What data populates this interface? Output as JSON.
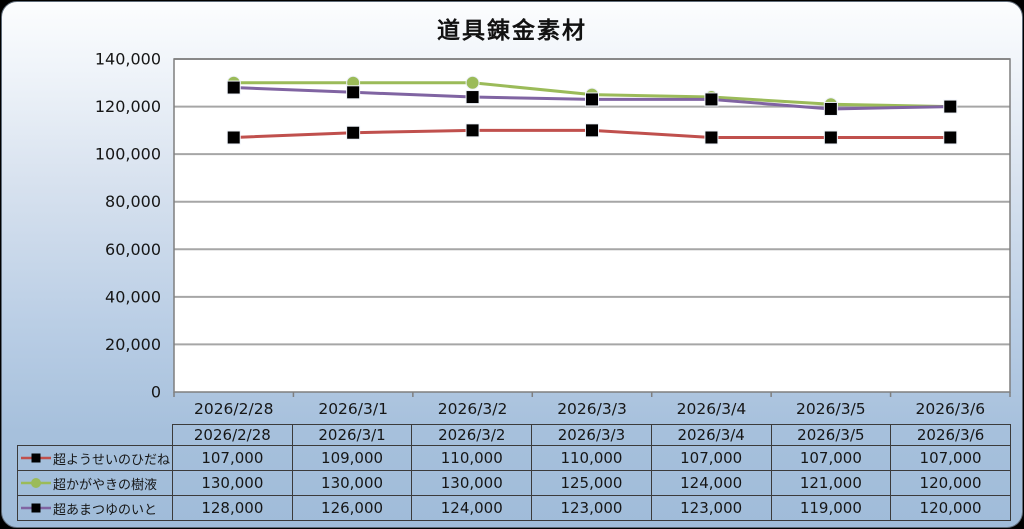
{
  "title": "道具錬金素材",
  "colors": {
    "page_bg": "#000000",
    "panel_border": "#5f6b79",
    "bg_top": "#fcfdfe",
    "bg_bottom": "#a0bcd9",
    "plot_bg": "#ffffff",
    "gridline": "#a6a6a6",
    "axis_line": "#7f7f7f",
    "text": "#161616",
    "table_border": "#3b3b3b",
    "marker_outline": "#eef2f8"
  },
  "chart_data": {
    "type": "line",
    "title": "道具錬金素材",
    "categories": [
      "2026/2/28",
      "2026/3/1",
      "2026/3/2",
      "2026/3/3",
      "2026/3/4",
      "2026/3/5",
      "2026/3/6"
    ],
    "series": [
      {
        "name": "超ようせいのひだね",
        "color": "#c0504d",
        "marker": "square",
        "marker_color": "#000000",
        "values": [
          107000,
          109000,
          110000,
          110000,
          107000,
          107000,
          107000
        ]
      },
      {
        "name": "超かがやきの樹液",
        "color": "#9bbb59",
        "marker": "circle",
        "marker_color": "#9bbb59",
        "values": [
          130000,
          130000,
          130000,
          125000,
          124000,
          121000,
          120000
        ]
      },
      {
        "name": "超あまつゆのいと",
        "color": "#8064a2",
        "marker": "square",
        "marker_color": "#000000",
        "values": [
          128000,
          126000,
          124000,
          123000,
          123000,
          119000,
          120000
        ]
      }
    ],
    "xlabel": "",
    "ylabel": "",
    "ylim": [
      0,
      140000
    ],
    "ytick_step": 20000,
    "ytick_labels_top_to_bottom": [
      "140,000",
      "120,000",
      "100,000",
      "80,000",
      "60,000",
      "40,000",
      "20,000",
      "0"
    ],
    "grid": true,
    "legend_position": "table-left-column"
  },
  "table": {
    "corner_label": "",
    "header": [
      "2026/2/28",
      "2026/3/1",
      "2026/3/2",
      "2026/3/3",
      "2026/3/4",
      "2026/3/5",
      "2026/3/6"
    ],
    "rows": [
      {
        "label": "超ようせいのひだね",
        "values": [
          "107,000",
          "109,000",
          "110,000",
          "110,000",
          "107,000",
          "107,000",
          "107,000"
        ]
      },
      {
        "label": "超かがやきの樹液",
        "values": [
          "130,000",
          "130,000",
          "130,000",
          "125,000",
          "124,000",
          "121,000",
          "120,000"
        ]
      },
      {
        "label": "超あまつゆのいと",
        "values": [
          "128,000",
          "126,000",
          "124,000",
          "123,000",
          "123,000",
          "119,000",
          "120,000"
        ]
      }
    ]
  }
}
